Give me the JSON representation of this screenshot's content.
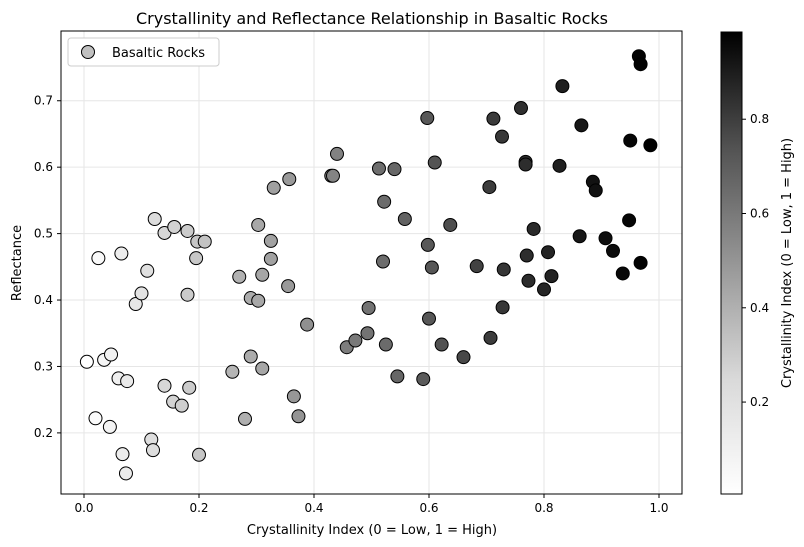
{
  "chart_data": {
    "type": "scatter",
    "title": "Crystallinity and Reflectance Relationship in Basaltic Rocks",
    "xlabel": "Crystallinity Index (0 = Low, 1 = High)",
    "ylabel": "Reflectance",
    "xlim": [
      -0.04,
      1.04
    ],
    "ylim": [
      0.108,
      0.805
    ],
    "xticks": [
      0.0,
      0.2,
      0.4,
      0.6,
      0.8,
      1.0
    ],
    "xtick_labels": [
      "0.0",
      "0.2",
      "0.4",
      "0.6",
      "0.8",
      "1.0"
    ],
    "yticks": [
      0.2,
      0.3,
      0.4,
      0.5,
      0.6,
      0.7
    ],
    "ytick_labels": [
      "0.2",
      "0.3",
      "0.4",
      "0.5",
      "0.6",
      "0.7"
    ],
    "grid": true,
    "legend": {
      "position": "top-left",
      "entries": [
        "Basaltic Rocks"
      ]
    },
    "colorbar": {
      "label": "Crystallinity Index (0 = Low, 1 = High)",
      "range": [
        0.005,
        0.985
      ],
      "ticks": [
        0.2,
        0.4,
        0.6,
        0.8
      ],
      "tick_labels": [
        "0.2",
        "0.4",
        "0.6",
        "0.8"
      ],
      "colormap": "Greys"
    },
    "series": [
      {
        "name": "Basaltic Rocks",
        "points": [
          [
            0.005,
            0.307
          ],
          [
            0.02,
            0.222
          ],
          [
            0.025,
            0.463
          ],
          [
            0.035,
            0.31
          ],
          [
            0.045,
            0.209
          ],
          [
            0.047,
            0.318
          ],
          [
            0.06,
            0.282
          ],
          [
            0.065,
            0.47
          ],
          [
            0.067,
            0.168
          ],
          [
            0.073,
            0.139
          ],
          [
            0.075,
            0.278
          ],
          [
            0.09,
            0.394
          ],
          [
            0.1,
            0.41
          ],
          [
            0.11,
            0.444
          ],
          [
            0.117,
            0.19
          ],
          [
            0.12,
            0.174
          ],
          [
            0.123,
            0.522
          ],
          [
            0.14,
            0.271
          ],
          [
            0.14,
            0.501
          ],
          [
            0.155,
            0.247
          ],
          [
            0.157,
            0.51
          ],
          [
            0.17,
            0.241
          ],
          [
            0.18,
            0.408
          ],
          [
            0.18,
            0.504
          ],
          [
            0.183,
            0.268
          ],
          [
            0.195,
            0.463
          ],
          [
            0.197,
            0.488
          ],
          [
            0.2,
            0.167
          ],
          [
            0.21,
            0.488
          ],
          [
            0.258,
            0.292
          ],
          [
            0.27,
            0.435
          ],
          [
            0.28,
            0.221
          ],
          [
            0.29,
            0.403
          ],
          [
            0.29,
            0.315
          ],
          [
            0.303,
            0.513
          ],
          [
            0.303,
            0.399
          ],
          [
            0.31,
            0.297
          ],
          [
            0.31,
            0.438
          ],
          [
            0.325,
            0.489
          ],
          [
            0.325,
            0.462
          ],
          [
            0.33,
            0.569
          ],
          [
            0.355,
            0.421
          ],
          [
            0.357,
            0.582
          ],
          [
            0.365,
            0.255
          ],
          [
            0.373,
            0.225
          ],
          [
            0.388,
            0.363
          ],
          [
            0.43,
            0.587
          ],
          [
            0.433,
            0.587
          ],
          [
            0.44,
            0.62
          ],
          [
            0.457,
            0.329
          ],
          [
            0.472,
            0.339
          ],
          [
            0.493,
            0.35
          ],
          [
            0.495,
            0.388
          ],
          [
            0.513,
            0.598
          ],
          [
            0.52,
            0.458
          ],
          [
            0.522,
            0.548
          ],
          [
            0.525,
            0.333
          ],
          [
            0.54,
            0.597
          ],
          [
            0.545,
            0.285
          ],
          [
            0.558,
            0.522
          ],
          [
            0.59,
            0.281
          ],
          [
            0.597,
            0.674
          ],
          [
            0.598,
            0.483
          ],
          [
            0.6,
            0.372
          ],
          [
            0.605,
            0.449
          ],
          [
            0.61,
            0.607
          ],
          [
            0.622,
            0.333
          ],
          [
            0.637,
            0.513
          ],
          [
            0.66,
            0.314
          ],
          [
            0.683,
            0.451
          ],
          [
            0.705,
            0.57
          ],
          [
            0.707,
            0.343
          ],
          [
            0.712,
            0.673
          ],
          [
            0.727,
            0.646
          ],
          [
            0.728,
            0.389
          ],
          [
            0.73,
            0.446
          ],
          [
            0.76,
            0.689
          ],
          [
            0.768,
            0.608
          ],
          [
            0.768,
            0.604
          ],
          [
            0.77,
            0.467
          ],
          [
            0.773,
            0.429
          ],
          [
            0.782,
            0.507
          ],
          [
            0.8,
            0.416
          ],
          [
            0.807,
            0.472
          ],
          [
            0.813,
            0.436
          ],
          [
            0.827,
            0.602
          ],
          [
            0.832,
            0.722
          ],
          [
            0.862,
            0.496
          ],
          [
            0.865,
            0.663
          ],
          [
            0.885,
            0.578
          ],
          [
            0.89,
            0.565
          ],
          [
            0.907,
            0.493
          ],
          [
            0.92,
            0.474
          ],
          [
            0.937,
            0.44
          ],
          [
            0.948,
            0.52
          ],
          [
            0.95,
            0.64
          ],
          [
            0.965,
            0.767
          ],
          [
            0.968,
            0.755
          ],
          [
            0.968,
            0.456
          ],
          [
            0.985,
            0.633
          ]
        ]
      }
    ]
  }
}
